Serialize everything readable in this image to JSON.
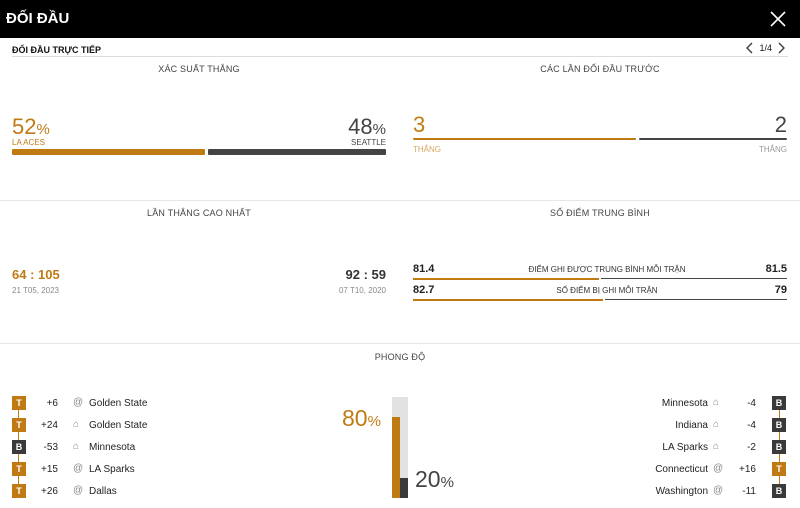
{
  "header": {
    "title": "ĐỐI ĐẦU"
  },
  "subheader": {
    "label": "ĐỐI ĐẦU TRỰC TIẾP",
    "pager": "1/4"
  },
  "win_prob": {
    "title": "XÁC SUẤT THẮNG",
    "left": {
      "value": "52",
      "unit": "%",
      "team": "LA ACES",
      "fraction": 0.52
    },
    "right": {
      "value": "48",
      "unit": "%",
      "team": "SEATTLE",
      "fraction": 0.48
    }
  },
  "prev_meetings": {
    "title": "CÁC LẦN ĐỐI ĐẦU TRƯỚC",
    "left": {
      "value": "3",
      "label": "THẮNG"
    },
    "right": {
      "value": "2",
      "label": "THẮNG"
    }
  },
  "biggest_win": {
    "title": "LẦN THẮNG CAO NHẤT",
    "left": {
      "score": "64 : 105",
      "date": "21 T05, 2023"
    },
    "right": {
      "score": "92 : 59",
      "date": "07 T10, 2020"
    }
  },
  "avg_points": {
    "title": "SỐ ĐIỂM TRUNG BÌNH",
    "rows": [
      {
        "left": "81.4",
        "label": "ĐIỂM GHI ĐƯỢC TRUNG BÌNH MỖI TRẬN",
        "right": "81.5"
      },
      {
        "left": "82.7",
        "label": "SỐ ĐIỂM BỊ GHI MỖI TRẬN",
        "right": "79"
      }
    ]
  },
  "form": {
    "title": "PHONG ĐỘ",
    "left_pct": "80",
    "right_pct": "20",
    "unit": "%",
    "left_fraction": 0.8,
    "right_fraction": 0.2,
    "left": [
      {
        "result": "T",
        "diff": "+6",
        "venue": "@",
        "team": "Golden State"
      },
      {
        "result": "T",
        "diff": "+24",
        "venue": "home",
        "team": "Golden State"
      },
      {
        "result": "B",
        "diff": "-53",
        "venue": "home",
        "team": "Minnesota"
      },
      {
        "result": "T",
        "diff": "+15",
        "venue": "@",
        "team": "LA Sparks"
      },
      {
        "result": "T",
        "diff": "+26",
        "venue": "@",
        "team": "Dallas"
      }
    ],
    "right": [
      {
        "result": "B",
        "diff": "-4",
        "venue": "home",
        "team": "Minnesota"
      },
      {
        "result": "B",
        "diff": "-4",
        "venue": "home",
        "team": "Indiana"
      },
      {
        "result": "B",
        "diff": "-2",
        "venue": "home",
        "team": "LA Sparks"
      },
      {
        "result": "T",
        "diff": "+16",
        "venue": "@",
        "team": "Connecticut"
      },
      {
        "result": "B",
        "diff": "-11",
        "venue": "@",
        "team": "Washington"
      }
    ]
  },
  "colors": {
    "accent": "#c07a14",
    "dark": "#3a3a3a"
  }
}
